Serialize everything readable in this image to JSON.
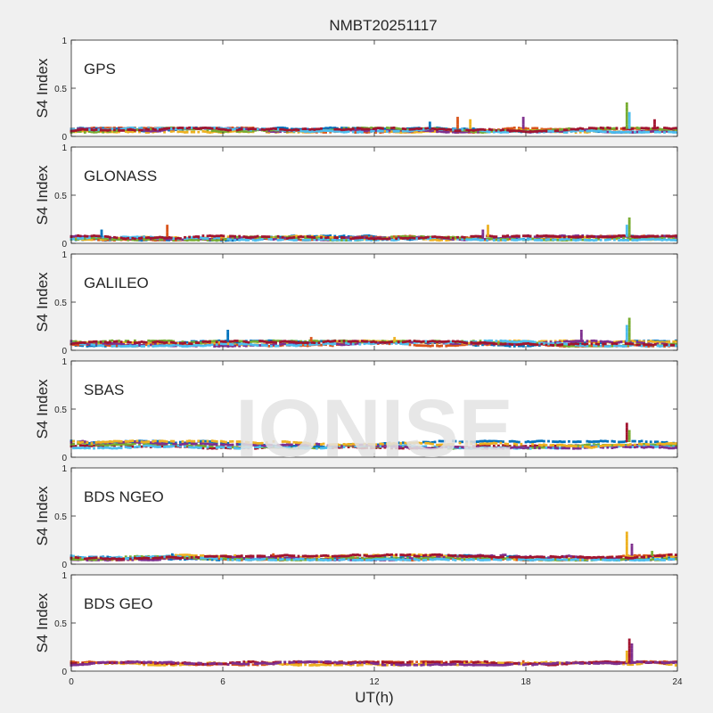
{
  "figure": {
    "title": "NMBT20251117",
    "watermark": "IONISE",
    "xlabel": "UT(h)",
    "xlim": [
      0,
      24
    ],
    "xticks": [
      0,
      6,
      12,
      18,
      24
    ],
    "colors": {
      "background": "#f0f0f0",
      "axes_bg": "#ffffff",
      "watermark": "#e3e3e3"
    }
  },
  "chart_data": [
    {
      "type": "scatter",
      "label": "GPS",
      "ylabel": "S4 Index",
      "ylim": [
        0,
        1
      ],
      "yticks": [
        "0",
        "0.5",
        "1"
      ],
      "series_colors": [
        "#0072bd",
        "#d95319",
        "#edb120",
        "#7e2f8e",
        "#77ac30",
        "#4dbeee",
        "#a2142f"
      ],
      "baseline": [
        0.04,
        0.09
      ],
      "spikes": [
        [
          14.2,
          0.14
        ],
        [
          15.3,
          0.19
        ],
        [
          15.8,
          0.17
        ],
        [
          17.9,
          0.21
        ],
        [
          22.0,
          0.35
        ],
        [
          22.1,
          0.25
        ],
        [
          23.1,
          0.17
        ]
      ]
    },
    {
      "type": "scatter",
      "label": "GLONASS",
      "ylabel": "S4 Index",
      "ylim": [
        0,
        1
      ],
      "yticks": [
        "0",
        "0.5",
        "1"
      ],
      "series_colors": [
        "#0072bd",
        "#d95319",
        "#edb120",
        "#7e2f8e",
        "#77ac30",
        "#4dbeee",
        "#a2142f"
      ],
      "baseline": [
        0.03,
        0.08
      ],
      "spikes": [
        [
          1.2,
          0.14
        ],
        [
          3.8,
          0.19
        ],
        [
          16.5,
          0.19
        ],
        [
          16.3,
          0.14
        ],
        [
          22.1,
          0.26
        ],
        [
          22.0,
          0.2
        ]
      ]
    },
    {
      "type": "scatter",
      "label": "GALILEO",
      "ylabel": "S4 Index",
      "ylim": [
        0,
        1
      ],
      "yticks": [
        "0",
        "0.5",
        "1"
      ],
      "series_colors": [
        "#0072bd",
        "#d95319",
        "#edb120",
        "#7e2f8e",
        "#77ac30",
        "#4dbeee",
        "#a2142f"
      ],
      "baseline": [
        0.04,
        0.1
      ],
      "spikes": [
        [
          6.2,
          0.21
        ],
        [
          9.5,
          0.13
        ],
        [
          12.8,
          0.13
        ],
        [
          20.2,
          0.22
        ],
        [
          22.1,
          0.34
        ],
        [
          22.0,
          0.25
        ]
      ]
    },
    {
      "type": "scatter",
      "label": "SBAS",
      "ylabel": "S4 Index",
      "ylim": [
        0,
        1
      ],
      "yticks": [
        "0",
        "0.5",
        "1"
      ],
      "series_colors": [
        "#a2142f",
        "#77ac30",
        "#0072bd",
        "#4dbeee",
        "#7e2f8e",
        "#edb120"
      ],
      "baseline": [
        0.09,
        0.17
      ],
      "spikes": [
        [
          22.0,
          0.36
        ],
        [
          22.1,
          0.28
        ]
      ]
    },
    {
      "type": "scatter",
      "label": "BDS NGEO",
      "ylabel": "S4 Index",
      "ylim": [
        0,
        1
      ],
      "yticks": [
        "0",
        "0.5",
        "1"
      ],
      "series_colors": [
        "#0072bd",
        "#d95319",
        "#edb120",
        "#7e2f8e",
        "#77ac30",
        "#4dbeee",
        "#a2142f"
      ],
      "baseline": [
        0.04,
        0.1
      ],
      "spikes": [
        [
          4.0,
          0.12
        ],
        [
          8.0,
          0.12
        ],
        [
          22.0,
          0.34
        ],
        [
          22.2,
          0.22
        ],
        [
          23.0,
          0.14
        ]
      ]
    },
    {
      "type": "scatter",
      "label": "BDS GEO",
      "ylabel": "S4 Index",
      "ylim": [
        0,
        1
      ],
      "yticks": [
        "0",
        "0.5",
        "1"
      ],
      "series_colors": [
        "#d95319",
        "#edb120",
        "#a2142f",
        "#7e2f8e"
      ],
      "baseline": [
        0.06,
        0.1
      ],
      "spikes": [
        [
          17.9,
          0.12
        ],
        [
          22.0,
          0.2
        ],
        [
          22.1,
          0.35
        ],
        [
          22.2,
          0.28
        ]
      ]
    }
  ]
}
